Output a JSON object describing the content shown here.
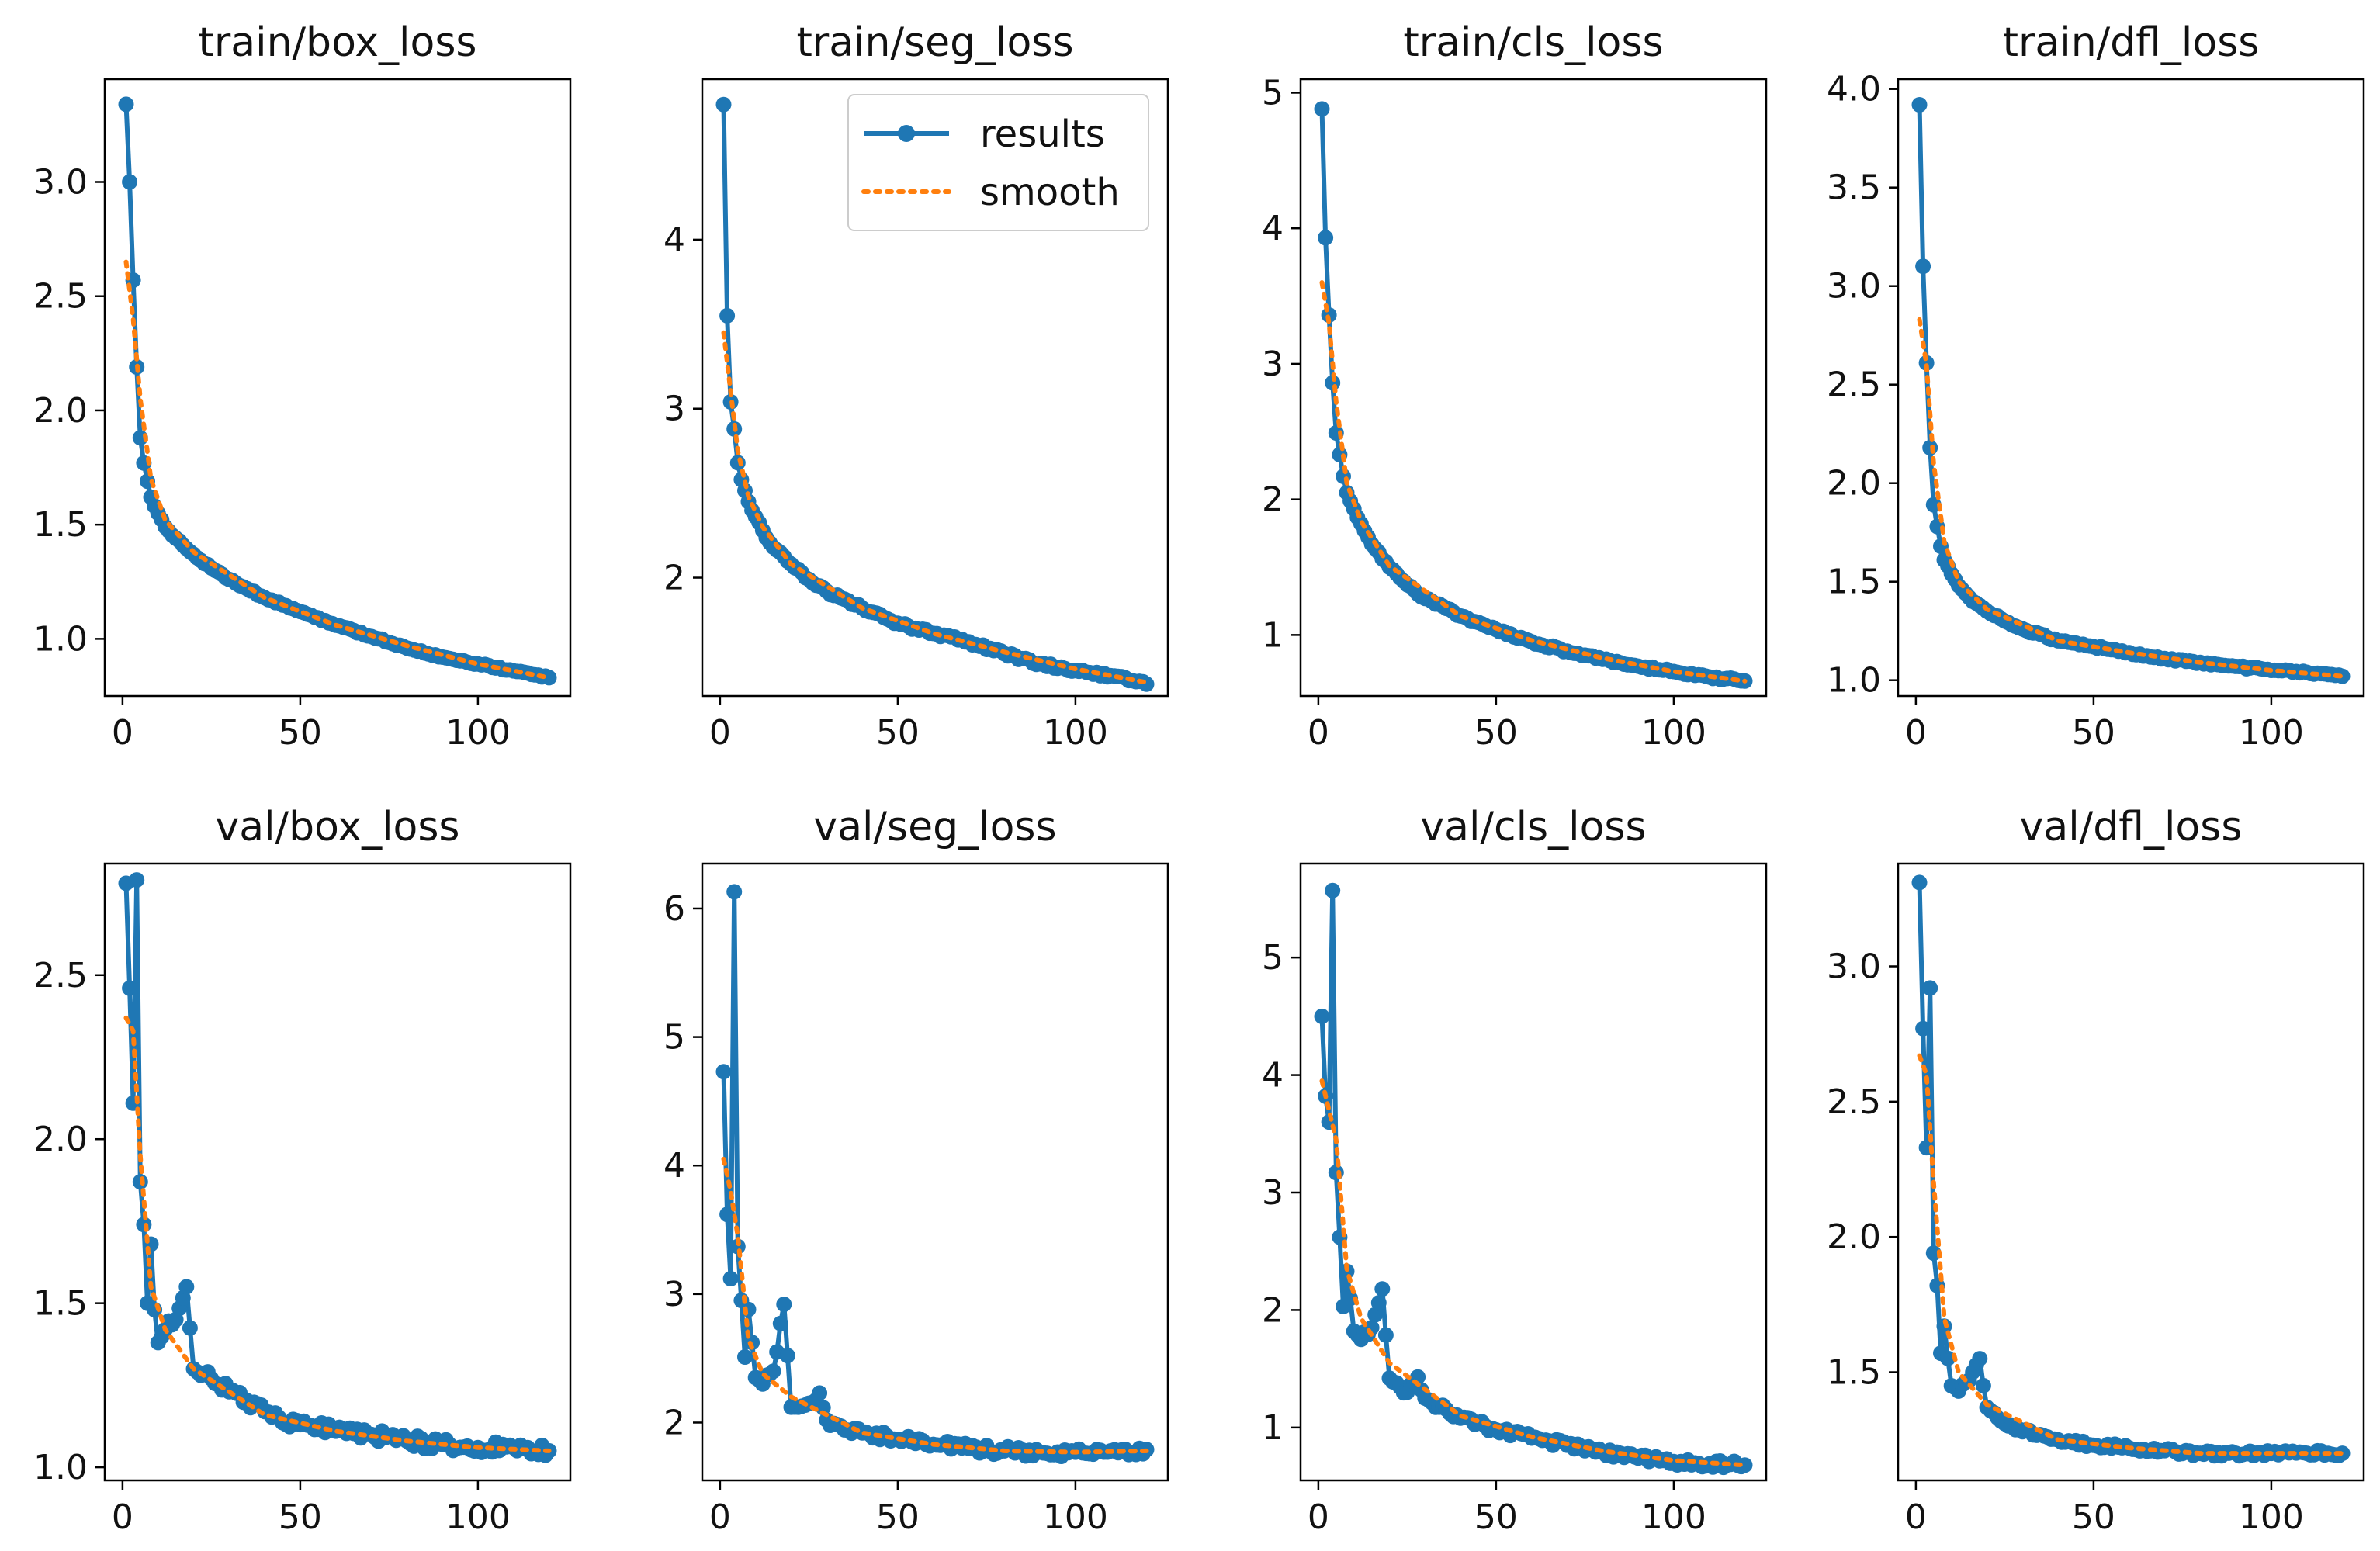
{
  "colors": {
    "results": "#1f77b4",
    "smooth": "#ff7f0e",
    "frame": "#000000"
  },
  "legend": {
    "placement": "upper-right",
    "panel": 1,
    "entries": [
      "results",
      "smooth"
    ]
  },
  "chart_data": [
    {
      "type": "line",
      "title": "train/box_loss",
      "xlim": [
        -5,
        126
      ],
      "ylim": [
        0.75,
        3.45
      ],
      "xticks": [
        0,
        50,
        100
      ],
      "xtick_labels": [
        "0",
        "50",
        "100"
      ],
      "yticks": [
        1.0,
        1.5,
        2.0,
        2.5,
        3.0
      ],
      "ytick_labels": [
        "1.0",
        "1.5",
        "2.0",
        "2.5",
        "3.0"
      ],
      "legend": [
        "results",
        "smooth"
      ],
      "results_anchors": [
        [
          1,
          3.34
        ],
        [
          2,
          3.0
        ],
        [
          3,
          2.57
        ],
        [
          4,
          2.19
        ],
        [
          5,
          1.88
        ],
        [
          6,
          1.77
        ],
        [
          7,
          1.69
        ],
        [
          8,
          1.62
        ],
        [
          10,
          1.55
        ],
        [
          12,
          1.49
        ],
        [
          15,
          1.44
        ],
        [
          20,
          1.37
        ],
        [
          25,
          1.31
        ],
        [
          30,
          1.26
        ],
        [
          40,
          1.18
        ],
        [
          50,
          1.12
        ],
        [
          60,
          1.06
        ],
        [
          70,
          1.01
        ],
        [
          80,
          0.96
        ],
        [
          90,
          0.92
        ],
        [
          100,
          0.89
        ],
        [
          110,
          0.86
        ],
        [
          120,
          0.83
        ]
      ],
      "smooth_anchors": [
        [
          1,
          2.65
        ],
        [
          3,
          2.4
        ],
        [
          5,
          2.05
        ],
        [
          8,
          1.7
        ],
        [
          12,
          1.52
        ],
        [
          20,
          1.38
        ],
        [
          40,
          1.18
        ],
        [
          60,
          1.06
        ],
        [
          80,
          0.97
        ],
        [
          100,
          0.89
        ],
        [
          120,
          0.83
        ]
      ],
      "noise_amp": 0.004,
      "outliers": []
    },
    {
      "type": "line",
      "title": "train/seg_loss",
      "xlim": [
        -5,
        126
      ],
      "ylim": [
        1.3,
        4.95
      ],
      "xticks": [
        0,
        50,
        100
      ],
      "xtick_labels": [
        "0",
        "50",
        "100"
      ],
      "yticks": [
        2,
        3,
        4
      ],
      "ytick_labels": [
        "2",
        "3",
        "4"
      ],
      "legend": [
        "results",
        "smooth"
      ],
      "results_anchors": [
        [
          1,
          4.8
        ],
        [
          2,
          3.55
        ],
        [
          3,
          3.04
        ],
        [
          4,
          2.88
        ],
        [
          5,
          2.68
        ],
        [
          6,
          2.58
        ],
        [
          8,
          2.45
        ],
        [
          10,
          2.36
        ],
        [
          12,
          2.28
        ],
        [
          15,
          2.18
        ],
        [
          20,
          2.08
        ],
        [
          25,
          1.99
        ],
        [
          30,
          1.92
        ],
        [
          40,
          1.82
        ],
        [
          50,
          1.73
        ],
        [
          60,
          1.67
        ],
        [
          70,
          1.62
        ],
        [
          80,
          1.55
        ],
        [
          90,
          1.49
        ],
        [
          100,
          1.45
        ],
        [
          110,
          1.42
        ],
        [
          120,
          1.37
        ]
      ],
      "smooth_anchors": [
        [
          1,
          3.45
        ],
        [
          3,
          3.1
        ],
        [
          5,
          2.75
        ],
        [
          8,
          2.48
        ],
        [
          12,
          2.3
        ],
        [
          20,
          2.08
        ],
        [
          40,
          1.82
        ],
        [
          60,
          1.67
        ],
        [
          80,
          1.56
        ],
        [
          100,
          1.46
        ],
        [
          120,
          1.38
        ]
      ],
      "noise_amp": 0.01,
      "outliers": []
    },
    {
      "type": "line",
      "title": "train/cls_loss",
      "xlim": [
        -5,
        126
      ],
      "ylim": [
        0.55,
        5.1
      ],
      "xticks": [
        0,
        50,
        100
      ],
      "xtick_labels": [
        "0",
        "50",
        "100"
      ],
      "yticks": [
        1,
        2,
        3,
        4,
        5
      ],
      "ytick_labels": [
        "1",
        "2",
        "3",
        "4",
        "5"
      ],
      "legend": [
        "results",
        "smooth"
      ],
      "results_anchors": [
        [
          1,
          4.88
        ],
        [
          2,
          3.93
        ],
        [
          3,
          3.36
        ],
        [
          4,
          2.86
        ],
        [
          5,
          2.49
        ],
        [
          6,
          2.33
        ],
        [
          7,
          2.17
        ],
        [
          8,
          2.05
        ],
        [
          10,
          1.93
        ],
        [
          12,
          1.82
        ],
        [
          15,
          1.67
        ],
        [
          20,
          1.5
        ],
        [
          25,
          1.37
        ],
        [
          30,
          1.27
        ],
        [
          40,
          1.14
        ],
        [
          50,
          1.04
        ],
        [
          60,
          0.95
        ],
        [
          70,
          0.88
        ],
        [
          80,
          0.82
        ],
        [
          90,
          0.77
        ],
        [
          100,
          0.73
        ],
        [
          110,
          0.69
        ],
        [
          120,
          0.66
        ]
      ],
      "smooth_anchors": [
        [
          1,
          3.6
        ],
        [
          3,
          3.3
        ],
        [
          5,
          2.72
        ],
        [
          8,
          2.12
        ],
        [
          12,
          1.84
        ],
        [
          20,
          1.51
        ],
        [
          40,
          1.14
        ],
        [
          60,
          0.96
        ],
        [
          80,
          0.83
        ],
        [
          100,
          0.73
        ],
        [
          120,
          0.66
        ]
      ],
      "noise_amp": 0.01,
      "outliers": []
    },
    {
      "type": "line",
      "title": "train/dfl_loss",
      "xlim": [
        -5,
        126
      ],
      "ylim": [
        0.92,
        4.05
      ],
      "xticks": [
        0,
        50,
        100
      ],
      "xtick_labels": [
        "0",
        "50",
        "100"
      ],
      "yticks": [
        1.0,
        1.5,
        2.0,
        2.5,
        3.0,
        3.5,
        4.0
      ],
      "ytick_labels": [
        "1.0",
        "1.5",
        "2.0",
        "2.5",
        "3.0",
        "3.5",
        "4.0"
      ],
      "legend": [
        "results",
        "smooth"
      ],
      "results_anchors": [
        [
          1,
          3.92
        ],
        [
          2,
          3.1
        ],
        [
          3,
          2.61
        ],
        [
          4,
          2.18
        ],
        [
          5,
          1.89
        ],
        [
          6,
          1.78
        ],
        [
          7,
          1.68
        ],
        [
          8,
          1.61
        ],
        [
          10,
          1.54
        ],
        [
          12,
          1.48
        ],
        [
          15,
          1.42
        ],
        [
          20,
          1.35
        ],
        [
          25,
          1.3
        ],
        [
          30,
          1.26
        ],
        [
          40,
          1.2
        ],
        [
          50,
          1.17
        ],
        [
          60,
          1.14
        ],
        [
          70,
          1.11
        ],
        [
          80,
          1.09
        ],
        [
          90,
          1.07
        ],
        [
          100,
          1.05
        ],
        [
          110,
          1.04
        ],
        [
          120,
          1.02
        ]
      ],
      "smooth_anchors": [
        [
          1,
          2.83
        ],
        [
          3,
          2.6
        ],
        [
          5,
          2.1
        ],
        [
          8,
          1.7
        ],
        [
          12,
          1.5
        ],
        [
          20,
          1.36
        ],
        [
          40,
          1.2
        ],
        [
          60,
          1.14
        ],
        [
          80,
          1.09
        ],
        [
          100,
          1.05
        ],
        [
          120,
          1.02
        ]
      ],
      "noise_amp": 0.006,
      "outliers": []
    },
    {
      "type": "line",
      "title": "val/box_loss",
      "xlim": [
        -5,
        126
      ],
      "ylim": [
        0.96,
        2.84
      ],
      "xticks": [
        0,
        50,
        100
      ],
      "xtick_labels": [
        "0",
        "50",
        "100"
      ],
      "yticks": [
        1.0,
        1.5,
        2.0,
        2.5
      ],
      "ytick_labels": [
        "1.0",
        "1.5",
        "2.0",
        "2.5"
      ],
      "legend": [
        "results",
        "smooth"
      ],
      "results_anchors": [
        [
          1,
          2.78
        ],
        [
          2,
          2.46
        ],
        [
          3,
          2.11
        ],
        [
          4,
          2.79
        ],
        [
          5,
          1.87
        ],
        [
          6,
          1.74
        ],
        [
          7,
          1.5
        ],
        [
          8,
          1.68
        ],
        [
          9,
          1.48
        ],
        [
          10,
          1.38
        ],
        [
          12,
          1.42
        ],
        [
          15,
          1.45
        ],
        [
          18,
          1.55
        ],
        [
          20,
          1.3
        ],
        [
          25,
          1.27
        ],
        [
          30,
          1.23
        ],
        [
          40,
          1.17
        ],
        [
          50,
          1.13
        ],
        [
          60,
          1.11
        ],
        [
          70,
          1.1
        ],
        [
          80,
          1.08
        ],
        [
          90,
          1.07
        ],
        [
          100,
          1.06
        ],
        [
          110,
          1.06
        ],
        [
          120,
          1.05
        ]
      ],
      "smooth_anchors": [
        [
          1,
          2.37
        ],
        [
          3,
          2.33
        ],
        [
          5,
          1.95
        ],
        [
          8,
          1.55
        ],
        [
          12,
          1.42
        ],
        [
          20,
          1.3
        ],
        [
          40,
          1.16
        ],
        [
          60,
          1.11
        ],
        [
          80,
          1.08
        ],
        [
          100,
          1.06
        ],
        [
          120,
          1.05
        ]
      ],
      "noise_amp": 0.018,
      "outliers": []
    },
    {
      "type": "line",
      "title": "val/seg_loss",
      "xlim": [
        -5,
        126
      ],
      "ylim": [
        1.55,
        6.35
      ],
      "xticks": [
        0,
        50,
        100
      ],
      "xtick_labels": [
        "0",
        "50",
        "100"
      ],
      "yticks": [
        2,
        3,
        4,
        5,
        6
      ],
      "ytick_labels": [
        "2",
        "3",
        "4",
        "5",
        "6"
      ],
      "legend": [
        "results",
        "smooth"
      ],
      "results_anchors": [
        [
          1,
          4.73
        ],
        [
          2,
          3.62
        ],
        [
          3,
          3.12
        ],
        [
          4,
          6.13
        ],
        [
          5,
          3.37
        ],
        [
          6,
          2.95
        ],
        [
          7,
          2.51
        ],
        [
          8,
          2.88
        ],
        [
          10,
          2.35
        ],
        [
          12,
          2.3
        ],
        [
          15,
          2.4
        ],
        [
          18,
          2.92
        ],
        [
          20,
          2.12
        ],
        [
          25,
          2.15
        ],
        [
          28,
          2.23
        ],
        [
          30,
          2.02
        ],
        [
          40,
          1.92
        ],
        [
          50,
          1.87
        ],
        [
          60,
          1.83
        ],
        [
          70,
          1.8
        ],
        [
          80,
          1.78
        ],
        [
          90,
          1.77
        ],
        [
          100,
          1.77
        ],
        [
          110,
          1.78
        ],
        [
          120,
          1.79
        ]
      ],
      "smooth_anchors": [
        [
          1,
          4.05
        ],
        [
          3,
          3.8
        ],
        [
          5,
          3.45
        ],
        [
          8,
          2.65
        ],
        [
          12,
          2.38
        ],
        [
          20,
          2.2
        ],
        [
          40,
          1.92
        ],
        [
          60,
          1.83
        ],
        [
          80,
          1.78
        ],
        [
          100,
          1.77
        ],
        [
          120,
          1.78
        ]
      ],
      "noise_amp": 0.035,
      "outliers": []
    },
    {
      "type": "line",
      "title": "val/cls_loss",
      "xlim": [
        -5,
        126
      ],
      "ylim": [
        0.55,
        5.8
      ],
      "xticks": [
        0,
        50,
        100
      ],
      "xtick_labels": [
        "0",
        "50",
        "100"
      ],
      "yticks": [
        1,
        2,
        3,
        4,
        5
      ],
      "ytick_labels": [
        "1",
        "2",
        "3",
        "4",
        "5"
      ],
      "legend": [
        "results",
        "smooth"
      ],
      "results_anchors": [
        [
          1,
          4.5
        ],
        [
          2,
          3.82
        ],
        [
          3,
          3.6
        ],
        [
          4,
          5.57
        ],
        [
          5,
          3.17
        ],
        [
          6,
          2.62
        ],
        [
          7,
          2.03
        ],
        [
          8,
          2.33
        ],
        [
          10,
          1.82
        ],
        [
          12,
          1.75
        ],
        [
          15,
          1.85
        ],
        [
          18,
          2.18
        ],
        [
          20,
          1.42
        ],
        [
          25,
          1.3
        ],
        [
          28,
          1.43
        ],
        [
          30,
          1.25
        ],
        [
          40,
          1.08
        ],
        [
          50,
          0.98
        ],
        [
          60,
          0.91
        ],
        [
          70,
          0.85
        ],
        [
          80,
          0.79
        ],
        [
          90,
          0.74
        ],
        [
          100,
          0.71
        ],
        [
          110,
          0.69
        ],
        [
          120,
          0.68
        ]
      ],
      "smooth_anchors": [
        [
          1,
          3.95
        ],
        [
          3,
          3.7
        ],
        [
          5,
          3.45
        ],
        [
          8,
          2.35
        ],
        [
          12,
          1.93
        ],
        [
          20,
          1.55
        ],
        [
          40,
          1.1
        ],
        [
          60,
          0.92
        ],
        [
          80,
          0.8
        ],
        [
          100,
          0.72
        ],
        [
          120,
          0.68
        ]
      ],
      "noise_amp": 0.03,
      "outliers": []
    },
    {
      "type": "line",
      "title": "val/dfl_loss",
      "xlim": [
        -5,
        126
      ],
      "ylim": [
        1.1,
        3.38
      ],
      "xticks": [
        0,
        50,
        100
      ],
      "xtick_labels": [
        "0",
        "50",
        "100"
      ],
      "yticks": [
        1.5,
        2.0,
        2.5,
        3.0
      ],
      "ytick_labels": [
        "1.5",
        "2.0",
        "2.5",
        "3.0"
      ],
      "legend": [
        "results",
        "smooth"
      ],
      "results_anchors": [
        [
          1,
          3.31
        ],
        [
          2,
          2.77
        ],
        [
          3,
          2.33
        ],
        [
          4,
          2.92
        ],
        [
          5,
          1.94
        ],
        [
          6,
          1.82
        ],
        [
          7,
          1.57
        ],
        [
          8,
          1.67
        ],
        [
          10,
          1.45
        ],
        [
          12,
          1.43
        ],
        [
          15,
          1.47
        ],
        [
          18,
          1.55
        ],
        [
          20,
          1.37
        ],
        [
          25,
          1.31
        ],
        [
          30,
          1.28
        ],
        [
          40,
          1.25
        ],
        [
          50,
          1.23
        ],
        [
          60,
          1.22
        ],
        [
          70,
          1.21
        ],
        [
          80,
          1.2
        ],
        [
          90,
          1.2
        ],
        [
          100,
          1.2
        ],
        [
          110,
          1.2
        ],
        [
          120,
          1.2
        ]
      ],
      "smooth_anchors": [
        [
          1,
          2.67
        ],
        [
          3,
          2.6
        ],
        [
          5,
          2.2
        ],
        [
          8,
          1.7
        ],
        [
          12,
          1.5
        ],
        [
          20,
          1.38
        ],
        [
          40,
          1.25
        ],
        [
          60,
          1.22
        ],
        [
          80,
          1.2
        ],
        [
          100,
          1.2
        ],
        [
          120,
          1.2
        ]
      ],
      "noise_amp": 0.01,
      "outliers": []
    }
  ]
}
